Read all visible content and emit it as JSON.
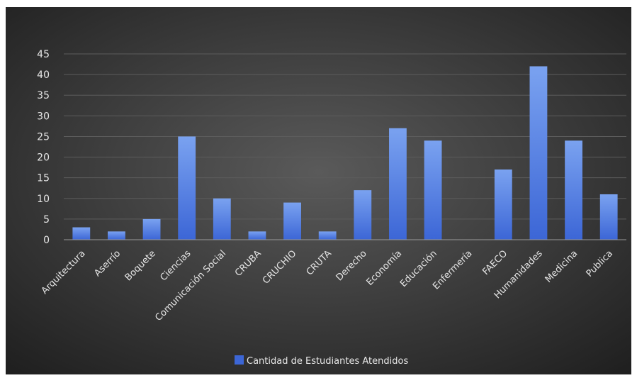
{
  "chart_data": {
    "type": "bar",
    "categories": [
      "Arquitectura",
      "Aserrío",
      "Boquete",
      "Ciencias",
      "Comunicación Social",
      "CRUBA",
      "CRUCHIO",
      "CRUTA",
      "Derecho",
      "Economía",
      "Educación",
      "Enfermería",
      "FAECO",
      "Humanidades",
      "Medicina",
      "Publica"
    ],
    "series": [
      {
        "name": "Cantidad de Estudiantes Atendidos",
        "values": [
          3,
          2,
          5,
          25,
          10,
          2,
          9,
          2,
          12,
          27,
          24,
          0,
          17,
          42,
          24,
          11
        ]
      }
    ],
    "yticks": [
      0,
      5,
      10,
      15,
      20,
      25,
      30,
      35,
      40,
      45
    ],
    "ylim": [
      0,
      45
    ],
    "title": "",
    "xlabel": "",
    "ylabel": "",
    "grid": true,
    "legend_position": "bottom",
    "colors": {
      "bar_top": "#7aa2f0",
      "bar_bottom": "#3c66d6",
      "background_center": "#5a5a5a",
      "background_edge": "#1e1e1e",
      "grid": "#5c5c5c",
      "axis": "#9a9a9a",
      "text": "#e6e6e6"
    }
  }
}
